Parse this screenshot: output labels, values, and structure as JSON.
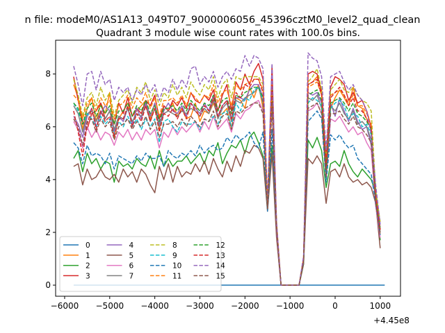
{
  "figure": {
    "suptitle": "n file: modeM0/AS1A13_049T07_9000006056_45396cztM0_level2_quad_clean"
  },
  "chart_data": {
    "type": "line",
    "title": "Quadrant 3 module wise count rates with 100.0s bins.",
    "xlabel": "",
    "ylabel": "",
    "x_offset_label": "+4.45e8",
    "xlim": [
      -6200,
      1450
    ],
    "ylim": [
      -0.42,
      9.28
    ],
    "xticks": [
      -6000,
      -5000,
      -4000,
      -3000,
      -2000,
      -1000,
      0,
      1000
    ],
    "xtick_labels": [
      "−6000",
      "−5000",
      "−4000",
      "−3000",
      "−2000",
      "−1000",
      "0",
      "1000"
    ],
    "yticks": [
      0,
      2,
      4,
      6,
      8
    ],
    "ytick_labels": [
      "0",
      "2",
      "4",
      "6",
      "8"
    ],
    "legend_position": "lower-left",
    "legend_columns": 4,
    "x_start": -5800,
    "x_step": 100,
    "series": [
      {
        "name": "0",
        "color": "#1f77b4",
        "dash": "solid",
        "values": [
          0,
          0,
          0,
          0,
          0,
          0,
          0,
          0,
          0,
          0,
          0,
          0,
          0,
          0,
          0,
          0,
          0,
          0,
          0,
          0,
          0,
          0,
          0,
          0,
          0,
          0,
          0,
          0,
          0,
          0,
          0,
          0,
          0,
          0,
          0,
          0,
          0,
          0,
          0,
          0,
          0,
          0,
          0,
          0,
          0,
          0,
          0,
          0,
          0,
          0,
          0,
          0,
          0,
          0,
          0,
          0,
          0,
          0,
          0,
          0,
          0,
          0,
          0,
          0,
          0,
          0,
          0,
          0,
          0,
          0
        ]
      },
      {
        "name": "1",
        "color": "#ff7f0e",
        "dash": "solid",
        "values": [
          7.6,
          7.1,
          5.9,
          6.7,
          7.1,
          6.2,
          6.9,
          6.5,
          7.3,
          5.6,
          6.3,
          6.6,
          6.9,
          6.4,
          6.6,
          6.8,
          7.0,
          6.3,
          6.9,
          5.9,
          6.8,
          6.6,
          6.9,
          6.4,
          6.7,
          6.3,
          6.4,
          6.9,
          6.2,
          6.6,
          6.5,
          6.9,
          6.4,
          6.5,
          6.7,
          5.9,
          7.1,
          7.0,
          6.7,
          7.5,
          7.1,
          7.6,
          6.7,
          3.0,
          7.5,
          2.4,
          0,
          0,
          0,
          0,
          0,
          1.0,
          7.6,
          7.7,
          7.9,
          7.4,
          4.6,
          6.7,
          7.1,
          7.4,
          7.1,
          6.8,
          7.5,
          6.8,
          6.7,
          6.3,
          5.9,
          3.3,
          2.0,
          null
        ]
      },
      {
        "name": "2",
        "color": "#2ca02c",
        "dash": "solid",
        "values": [
          4.8,
          5.1,
          4.3,
          5.0,
          4.6,
          4.8,
          4.4,
          4.7,
          4.6,
          3.9,
          4.7,
          4.5,
          4.6,
          4.4,
          4.8,
          4.6,
          4.5,
          4.9,
          4.4,
          5.1,
          4.5,
          4.8,
          4.5,
          4.7,
          4.7,
          4.9,
          4.6,
          4.8,
          5.0,
          4.6,
          5.1,
          4.9,
          5.4,
          4.6,
          5.0,
          5.3,
          5.2,
          5.5,
          5.0,
          5.6,
          5.8,
          5.4,
          4.9,
          3.0,
          5.3,
          2.1,
          0,
          0,
          0,
          0,
          0,
          0.8,
          5.5,
          5.2,
          5.6,
          5.1,
          3.7,
          4.6,
          4.7,
          4.5,
          5.1,
          4.6,
          4.3,
          4.1,
          4.4,
          4.2,
          4.0,
          3.5,
          1.7,
          null
        ]
      },
      {
        "name": "3",
        "color": "#d62728",
        "dash": "solid",
        "values": [
          7.9,
          7.0,
          6.2,
          5.9,
          6.5,
          6.6,
          6.9,
          6.3,
          6.6,
          6.1,
          6.9,
          6.5,
          7.1,
          6.4,
          6.7,
          6.5,
          7.0,
          6.8,
          7.2,
          6.3,
          6.8,
          6.6,
          7.0,
          6.8,
          7.1,
          6.7,
          7.3,
          7.0,
          6.9,
          7.2,
          7.0,
          7.4,
          6.6,
          7.2,
          7.6,
          6.6,
          7.7,
          7.4,
          8.0,
          7.6,
          8.1,
          8.4,
          7.8,
          3.0,
          8.3,
          2.3,
          0,
          0,
          0,
          0,
          0,
          1.0,
          8.0,
          8.1,
          8.0,
          7.3,
          4.8,
          7.5,
          7.9,
          7.8,
          7.6,
          7.0,
          7.3,
          6.9,
          7.0,
          6.6,
          6.0,
          3.4,
          2.1,
          null
        ]
      },
      {
        "name": "4",
        "color": "#9467bd",
        "dash": "solid",
        "values": [
          6.4,
          6.1,
          5.6,
          6.4,
          6.7,
          6.0,
          6.5,
          6.8,
          6.6,
          5.8,
          6.4,
          6.2,
          6.7,
          6.1,
          6.7,
          6.3,
          6.9,
          6.4,
          6.9,
          6.1,
          6.6,
          6.9,
          6.6,
          6.5,
          6.8,
          6.4,
          6.9,
          6.7,
          6.5,
          6.9,
          6.6,
          7.2,
          6.4,
          6.8,
          7.0,
          6.3,
          7.1,
          7.1,
          7.0,
          7.4,
          7.6,
          7.6,
          7.1,
          3.0,
          7.3,
          2.2,
          0,
          0,
          0,
          0,
          0,
          0.9,
          7.3,
          7.2,
          7.3,
          6.9,
          4.2,
          6.9,
          6.4,
          7.1,
          6.6,
          6.2,
          6.7,
          6.2,
          5.9,
          6.0,
          5.3,
          3.0,
          2.2,
          null
        ]
      },
      {
        "name": "5",
        "color": "#8c564b",
        "dash": "solid",
        "values": [
          4.5,
          4.6,
          3.8,
          4.4,
          4.0,
          4.1,
          4.4,
          4.1,
          4.0,
          4.2,
          3.9,
          4.4,
          4.1,
          4.3,
          3.9,
          4.4,
          4.2,
          3.8,
          3.5,
          4.5,
          4.0,
          4.6,
          3.9,
          4.5,
          4.1,
          4.3,
          4.2,
          4.6,
          4.3,
          4.7,
          4.2,
          4.8,
          4.4,
          4.1,
          4.7,
          4.3,
          4.9,
          4.5,
          5.1,
          5.0,
          5.3,
          5.2,
          4.8,
          2.8,
          5.0,
          1.8,
          0,
          0,
          0,
          0,
          0,
          0.8,
          4.8,
          4.6,
          4.9,
          4.6,
          3.1,
          4.3,
          4.4,
          4.1,
          4.6,
          4.1,
          3.9,
          4.0,
          3.8,
          3.9,
          3.7,
          3.1,
          1.4,
          null
        ]
      },
      {
        "name": "6",
        "color": "#e377c2",
        "dash": "solid",
        "values": [
          6.2,
          5.9,
          5.2,
          6.0,
          5.6,
          5.9,
          5.5,
          5.8,
          5.7,
          5.3,
          5.8,
          5.6,
          5.9,
          5.5,
          5.8,
          5.5,
          5.9,
          5.7,
          5.9,
          5.2,
          5.8,
          5.6,
          6.0,
          5.7,
          6.0,
          5.8,
          6.0,
          6.2,
          5.8,
          6.2,
          5.9,
          6.4,
          5.9,
          6.1,
          6.3,
          5.8,
          6.5,
          6.3,
          6.6,
          6.7,
          6.9,
          7.0,
          6.6,
          2.9,
          6.9,
          2.0,
          0,
          0,
          0,
          0,
          0,
          0.9,
          6.6,
          6.7,
          6.9,
          6.5,
          4.0,
          6.3,
          6.2,
          6.4,
          6.1,
          5.8,
          6.0,
          5.7,
          5.8,
          5.4,
          5.1,
          3.0,
          1.8,
          null
        ]
      },
      {
        "name": "7",
        "color": "#7f7f7f",
        "dash": "solid",
        "values": [
          6.8,
          6.5,
          5.8,
          6.5,
          6.6,
          6.2,
          6.6,
          6.3,
          6.6,
          5.9,
          6.4,
          6.3,
          6.7,
          6.2,
          6.5,
          6.4,
          6.8,
          6.2,
          6.7,
          6.0,
          6.5,
          6.6,
          6.5,
          6.4,
          6.6,
          6.5,
          6.7,
          6.6,
          6.4,
          6.7,
          6.5,
          7.0,
          6.3,
          6.7,
          6.9,
          6.2,
          7.0,
          6.9,
          7.1,
          7.2,
          7.3,
          7.5,
          6.9,
          2.9,
          7.2,
          2.1,
          0,
          0,
          0,
          0,
          0,
          0.9,
          7.1,
          7.0,
          7.2,
          6.7,
          4.4,
          6.8,
          6.6,
          6.9,
          6.5,
          6.3,
          6.6,
          6.1,
          6.2,
          6.0,
          5.5,
          3.1,
          2.0,
          null
        ]
      },
      {
        "name": "8",
        "color": "#bcbd22",
        "dash": "dashed",
        "values": [
          7.8,
          7.2,
          6.4,
          7.1,
          7.3,
          6.8,
          7.5,
          7.0,
          7.3,
          6.4,
          7.0,
          7.2,
          7.4,
          6.9,
          7.5,
          7.3,
          7.7,
          7.0,
          7.4,
          6.8,
          7.3,
          7.1,
          7.6,
          7.2,
          7.5,
          7.1,
          7.7,
          7.4,
          7.2,
          7.6,
          7.4,
          7.9,
          7.1,
          7.6,
          7.8,
          7.1,
          7.9,
          7.8,
          7.9,
          7.9,
          7.9,
          7.9,
          7.6,
          3.0,
          7.7,
          2.3,
          0,
          0,
          0,
          0,
          0,
          1.0,
          7.7,
          7.9,
          8.2,
          7.4,
          5.0,
          7.4,
          7.6,
          7.8,
          7.4,
          7.3,
          7.5,
          7.2,
          7.0,
          6.9,
          6.6,
          3.6,
          2.4,
          null
        ]
      },
      {
        "name": "9",
        "color": "#17becf",
        "dash": "dashed",
        "values": [
          6.9,
          6.6,
          6.1,
          6.5,
          6.3,
          6.0,
          6.4,
          6.1,
          6.3,
          5.7,
          6.2,
          6.0,
          6.4,
          6.0,
          6.3,
          5.9,
          6.3,
          6.0,
          6.3,
          5.4,
          6.2,
          6.3,
          6.0,
          5.8,
          6.2,
          6.1,
          6.1,
          6.2,
          5.9,
          6.3,
          6.2,
          6.4,
          6.1,
          6.5,
          6.6,
          6.0,
          6.9,
          6.6,
          7.1,
          7.0,
          7.4,
          7.5,
          7.0,
          3.0,
          7.3,
          2.2,
          0,
          0,
          0,
          0,
          0,
          0.9,
          6.9,
          7.1,
          7.0,
          6.8,
          4.0,
          6.7,
          6.9,
          7.0,
          6.8,
          6.3,
          6.5,
          6.4,
          6.0,
          6.1,
          5.7,
          3.2,
          2.1,
          null
        ]
      },
      {
        "name": "10",
        "color": "#1f77b4",
        "dash": "dashed",
        "values": [
          5.4,
          5.2,
          4.6,
          5.3,
          4.9,
          5.0,
          4.9,
          4.6,
          5.0,
          4.4,
          4.9,
          4.8,
          4.7,
          4.6,
          4.9,
          4.7,
          5.0,
          4.8,
          4.8,
          4.9,
          4.5,
          5.1,
          4.9,
          4.8,
          5.0,
          4.9,
          5.1,
          4.9,
          5.3,
          5.0,
          5.2,
          5.3,
          5.1,
          5.2,
          5.6,
          5.4,
          5.7,
          5.5,
          5.6,
          5.8,
          5.4,
          5.2,
          5.8,
          2.8,
          5.9,
          2.1,
          0,
          0,
          0,
          0,
          0,
          0.9,
          6.2,
          6.4,
          6.6,
          6.3,
          3.9,
          5.7,
          5.5,
          5.7,
          5.4,
          5.2,
          5.3,
          4.8,
          4.6,
          4.4,
          4.2,
          3.1,
          1.9,
          null
        ]
      },
      {
        "name": "11",
        "color": "#ff7f0e",
        "dash": "dashed",
        "values": [
          7.2,
          7.0,
          6.3,
          6.9,
          7.1,
          6.6,
          7.1,
          6.8,
          7.0,
          6.3,
          6.8,
          6.9,
          7.2,
          6.7,
          7.1,
          6.9,
          7.3,
          6.7,
          7.1,
          6.4,
          7.0,
          7.0,
          7.1,
          6.9,
          7.2,
          6.8,
          7.3,
          7.1,
          6.9,
          7.2,
          7.1,
          7.6,
          6.9,
          7.3,
          7.4,
          6.8,
          7.6,
          7.4,
          7.6,
          7.7,
          7.8,
          7.8,
          7.4,
          3.0,
          7.6,
          2.3,
          0,
          0,
          0,
          0,
          0,
          1.0,
          7.5,
          7.6,
          7.7,
          7.2,
          4.7,
          7.2,
          7.3,
          7.4,
          7.2,
          6.9,
          7.2,
          6.8,
          6.8,
          6.5,
          6.1,
          3.4,
          2.2,
          null
        ]
      },
      {
        "name": "12",
        "color": "#2ca02c",
        "dash": "dashed",
        "values": [
          6.9,
          6.7,
          6.1,
          6.7,
          6.9,
          6.4,
          6.8,
          6.5,
          6.8,
          6.1,
          6.6,
          6.6,
          6.9,
          6.4,
          6.8,
          6.6,
          7.0,
          6.5,
          6.8,
          6.2,
          6.7,
          6.7,
          6.8,
          6.6,
          6.9,
          6.6,
          7.0,
          6.8,
          6.6,
          6.9,
          6.8,
          7.2,
          6.6,
          7.0,
          7.1,
          6.5,
          7.2,
          7.1,
          7.3,
          7.4,
          7.5,
          7.5,
          7.1,
          2.9,
          7.4,
          2.2,
          0,
          0,
          0,
          0,
          0,
          0.9,
          7.2,
          7.3,
          7.4,
          7.0,
          4.4,
          6.9,
          7.0,
          7.1,
          6.9,
          6.6,
          6.9,
          6.5,
          6.4,
          6.2,
          5.9,
          3.3,
          2.1,
          null
        ]
      },
      {
        "name": "13",
        "color": "#d62728",
        "dash": "dashed",
        "values": [
          6.6,
          5.8,
          4.9,
          6.1,
          6.7,
          5.9,
          6.6,
          6.2,
          6.4,
          5.6,
          6.3,
          6.3,
          6.8,
          6.0,
          6.5,
          6.2,
          6.8,
          6.2,
          6.7,
          5.8,
          6.5,
          6.4,
          6.7,
          6.3,
          6.7,
          6.3,
          6.9,
          6.6,
          6.4,
          6.8,
          6.6,
          7.1,
          6.4,
          6.8,
          7.0,
          6.3,
          7.3,
          7.1,
          7.6,
          7.5,
          7.8,
          7.8,
          7.3,
          3.0,
          7.7,
          2.2,
          0,
          0,
          0,
          0,
          0,
          1.0,
          7.6,
          7.7,
          7.8,
          7.2,
          4.5,
          7.1,
          7.3,
          7.5,
          7.2,
          6.8,
          7.1,
          6.6,
          6.6,
          6.3,
          5.9,
          3.3,
          2.1,
          null
        ]
      },
      {
        "name": "14",
        "color": "#9467bd",
        "dash": "dashed",
        "values": [
          8.3,
          7.6,
          6.8,
          8.0,
          8.1,
          7.4,
          8.1,
          7.6,
          7.8,
          7.0,
          7.5,
          7.3,
          7.5,
          7.0,
          7.4,
          7.2,
          7.6,
          7.3,
          7.6,
          7.0,
          7.5,
          7.3,
          7.8,
          7.4,
          7.8,
          7.5,
          8.2,
          8.3,
          7.6,
          7.9,
          7.7,
          8.1,
          7.5,
          7.9,
          8.1,
          7.8,
          8.2,
          8.1,
          8.7,
          8.3,
          8.7,
          8.6,
          8.2,
          3.2,
          8.4,
          2.4,
          0,
          0,
          0,
          0,
          0,
          1.1,
          8.8,
          8.6,
          8.5,
          7.9,
          5.1,
          7.9,
          8.0,
          8.1,
          7.7,
          7.4,
          7.6,
          7.2,
          7.0,
          6.6,
          5.7,
          3.8,
          2.3,
          null
        ]
      },
      {
        "name": "15",
        "color": "#8c564b",
        "dash": "dashed",
        "values": [
          6.3,
          6.0,
          5.3,
          6.2,
          6.3,
          5.8,
          6.3,
          6.0,
          6.2,
          5.5,
          6.0,
          6.1,
          6.3,
          5.9,
          6.2,
          6.0,
          6.4,
          5.9,
          6.2,
          5.6,
          6.1,
          6.1,
          6.2,
          6.0,
          6.3,
          6.0,
          6.4,
          6.2,
          6.0,
          6.3,
          6.2,
          6.6,
          6.0,
          6.4,
          6.5,
          5.9,
          6.6,
          6.5,
          6.7,
          6.8,
          6.9,
          6.9,
          6.5,
          2.9,
          6.8,
          2.1,
          0,
          0,
          0,
          0,
          0,
          0.9,
          6.7,
          6.8,
          6.9,
          6.5,
          4.1,
          6.5,
          6.5,
          6.6,
          6.3,
          6.1,
          6.4,
          6.0,
          5.9,
          5.7,
          5.4,
          3.1,
          1.9,
          null
        ]
      }
    ]
  }
}
